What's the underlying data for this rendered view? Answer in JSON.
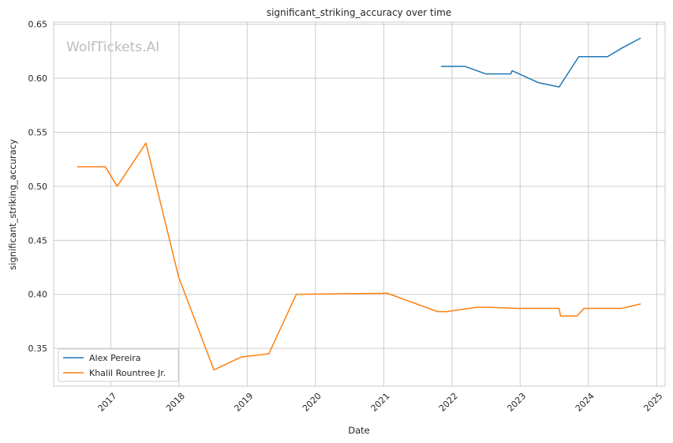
{
  "chart_data": {
    "type": "line",
    "title": "significant_striking_accuracy over time",
    "xlabel": "Date",
    "ylabel": "significant_striking_accuracy",
    "watermark": "WolfTickets.AI",
    "x_ticks": [
      "2017",
      "2018",
      "2019",
      "2020",
      "2021",
      "2022",
      "2023",
      "2024",
      "2025"
    ],
    "y_ticks": [
      "0.35",
      "0.40",
      "0.45",
      "0.50",
      "0.55",
      "0.60",
      "0.65"
    ],
    "xlim": [
      "2016-03-01",
      "2025-02-15"
    ],
    "ylim": [
      0.315,
      0.652
    ],
    "grid": true,
    "legend_position": "lower-left",
    "series": [
      {
        "name": "Alex Pereira",
        "color": "#1f77b4",
        "points": [
          [
            "2021-11-06",
            0.611
          ],
          [
            "2022-03-12",
            0.611
          ],
          [
            "2022-07-02",
            0.604
          ],
          [
            "2022-11-12",
            0.604
          ],
          [
            "2022-11-19",
            0.607
          ],
          [
            "2023-04-08",
            0.596
          ],
          [
            "2023-07-29",
            0.592
          ],
          [
            "2023-11-11",
            0.62
          ],
          [
            "2024-04-13",
            0.62
          ],
          [
            "2024-06-29",
            0.628
          ],
          [
            "2024-10-05",
            0.637
          ]
        ]
      },
      {
        "name": "Khalil Rountree Jr.",
        "color": "#ff7f0e",
        "points": [
          [
            "2016-07-08",
            0.518
          ],
          [
            "2016-12-03",
            0.518
          ],
          [
            "2017-02-04",
            0.5
          ],
          [
            "2017-07-08",
            0.54
          ],
          [
            "2017-12-30",
            0.416
          ],
          [
            "2018-07-07",
            0.33
          ],
          [
            "2018-12-01",
            0.342
          ],
          [
            "2019-04-27",
            0.345
          ],
          [
            "2019-09-21",
            0.4
          ],
          [
            "2021-01-20",
            0.401
          ],
          [
            "2021-10-16",
            0.384
          ],
          [
            "2021-12-04",
            0.384
          ],
          [
            "2022-05-14",
            0.388
          ],
          [
            "2022-07-09",
            0.388
          ],
          [
            "2022-12-17",
            0.387
          ],
          [
            "2023-07-29",
            0.387
          ],
          [
            "2023-08-05",
            0.38
          ],
          [
            "2023-11-01",
            0.38
          ],
          [
            "2023-12-09",
            0.387
          ],
          [
            "2024-06-29",
            0.387
          ],
          [
            "2024-10-05",
            0.391
          ]
        ]
      }
    ]
  }
}
